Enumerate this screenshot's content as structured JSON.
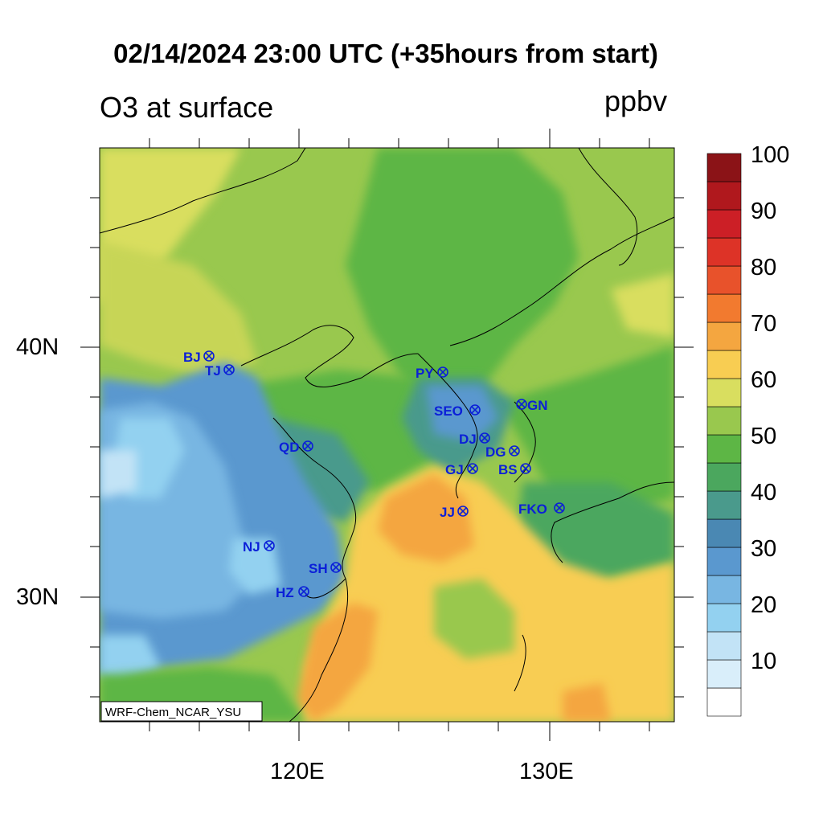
{
  "title": "02/14/2024 23:00 UTC (+35hours from start)",
  "variable": "O3 at surface",
  "units": "ppbv",
  "credit": "WRF-Chem_NCAR_YSU",
  "lat_labels": [
    "40N",
    "30N"
  ],
  "lon_labels": [
    "120E",
    "130E"
  ],
  "colorbar": {
    "colors": [
      "#ffffff",
      "#d9eefa",
      "#c2e3f6",
      "#93d1f0",
      "#78b6e2",
      "#5a98cf",
      "#4a88b3",
      "#4a9a8c",
      "#4ba75e",
      "#5db645",
      "#99c84e",
      "#d9de5f",
      "#f8cd52",
      "#f4a640",
      "#f27a2f",
      "#e8522b",
      "#dd3327",
      "#cc1f26",
      "#b0181d",
      "#8b1317"
    ],
    "labels": [
      "10",
      "20",
      "30",
      "40",
      "50",
      "60",
      "70",
      "80",
      "90",
      "100"
    ]
  },
  "stations": [
    {
      "id": "BJ",
      "label": "BJ"
    },
    {
      "id": "TJ",
      "label": "TJ"
    },
    {
      "id": "PY",
      "label": "PY"
    },
    {
      "id": "SEO",
      "label": "SEO"
    },
    {
      "id": "GN",
      "label": "GN"
    },
    {
      "id": "QD",
      "label": "QD"
    },
    {
      "id": "DJ",
      "label": "DJ"
    },
    {
      "id": "DG",
      "label": "DG"
    },
    {
      "id": "GJ",
      "label": "GJ"
    },
    {
      "id": "BS",
      "label": "BS"
    },
    {
      "id": "JJ",
      "label": "JJ"
    },
    {
      "id": "FKO",
      "label": "FKO"
    },
    {
      "id": "NJ",
      "label": "NJ"
    },
    {
      "id": "SH",
      "label": "SH"
    },
    {
      "id": "HZ",
      "label": "HZ"
    }
  ]
}
